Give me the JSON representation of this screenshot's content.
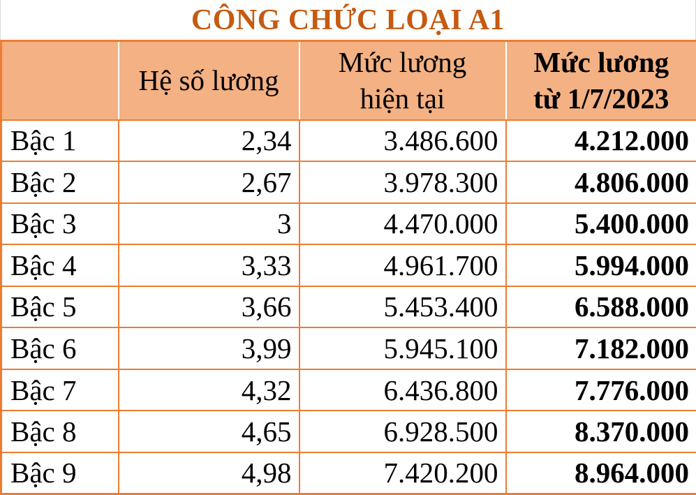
{
  "title": "CÔNG CHỨC LOẠI A1",
  "colors": {
    "title_text": "#C55A11",
    "header_bg": "#F4B183",
    "border": "#ED7D31",
    "row_bg": "#FFFFFF",
    "text": "#000000"
  },
  "table": {
    "columns": [
      {
        "label": ""
      },
      {
        "label": "Hệ số lương"
      },
      {
        "label": "Mức lương hiện tại",
        "lines": [
          "Mức lương",
          "hiện tại"
        ]
      },
      {
        "label": "Mức lương từ 1/7/2023",
        "lines": [
          "Mức lương",
          "từ 1/7/2023"
        ]
      }
    ],
    "rows": [
      {
        "level": "Bậc 1",
        "coefficient": "2,34",
        "current_salary": "3.486.600",
        "salary_from_1_7_2023": "4.212.000"
      },
      {
        "level": "Bậc 2",
        "coefficient": "2,67",
        "current_salary": "3.978.300",
        "salary_from_1_7_2023": "4.806.000"
      },
      {
        "level": "Bậc 3",
        "coefficient": "3",
        "current_salary": "4.470.000",
        "salary_from_1_7_2023": "5.400.000"
      },
      {
        "level": "Bậc 4",
        "coefficient": "3,33",
        "current_salary": "4.961.700",
        "salary_from_1_7_2023": "5.994.000"
      },
      {
        "level": "Bậc 5",
        "coefficient": "3,66",
        "current_salary": "5.453.400",
        "salary_from_1_7_2023": "6.588.000"
      },
      {
        "level": "Bậc 6",
        "coefficient": "3,99",
        "current_salary": "5.945.100",
        "salary_from_1_7_2023": "7.182.000"
      },
      {
        "level": "Bậc 7",
        "coefficient": "4,32",
        "current_salary": "6.436.800",
        "salary_from_1_7_2023": "7.776.000"
      },
      {
        "level": "Bậc 8",
        "coefficient": "4,65",
        "current_salary": "6.928.500",
        "salary_from_1_7_2023": "8.370.000"
      },
      {
        "level": "Bậc 9",
        "coefficient": "4,98",
        "current_salary": "7.420.200",
        "salary_from_1_7_2023": "8.964.000"
      }
    ]
  }
}
